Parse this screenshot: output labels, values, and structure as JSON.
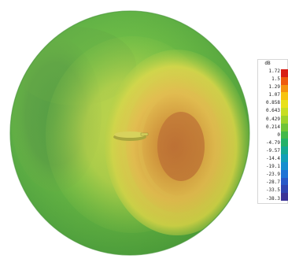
{
  "legend": {
    "unit": "dB",
    "labels": [
      "1.72",
      "1.5",
      "1.29",
      "1.07",
      "0.858",
      "0.643",
      "0.429",
      "0.214",
      "0",
      "-4.79",
      "-9.57",
      "-14.4",
      "-19.1",
      "-23.9",
      "-28.7",
      "-33.5",
      "-38.3"
    ],
    "swatches": [
      "#d81d14",
      "#ee5a0c",
      "#f5920d",
      "#f7c30f",
      "#e8e118",
      "#c7de22",
      "#9ed32a",
      "#6fc437",
      "#42b948",
      "#24b169",
      "#16a993",
      "#129fb7",
      "#168ecf",
      "#1f73d5",
      "#2858c8",
      "#3044b1",
      "#3b3397"
    ]
  },
  "colors": {
    "hot": "#c7742f",
    "warm": "#e5de45",
    "mid": "#92c93d",
    "cool": "#58b33d",
    "shadow": "#4d9c3b",
    "antenna": "#c1bb45"
  }
}
